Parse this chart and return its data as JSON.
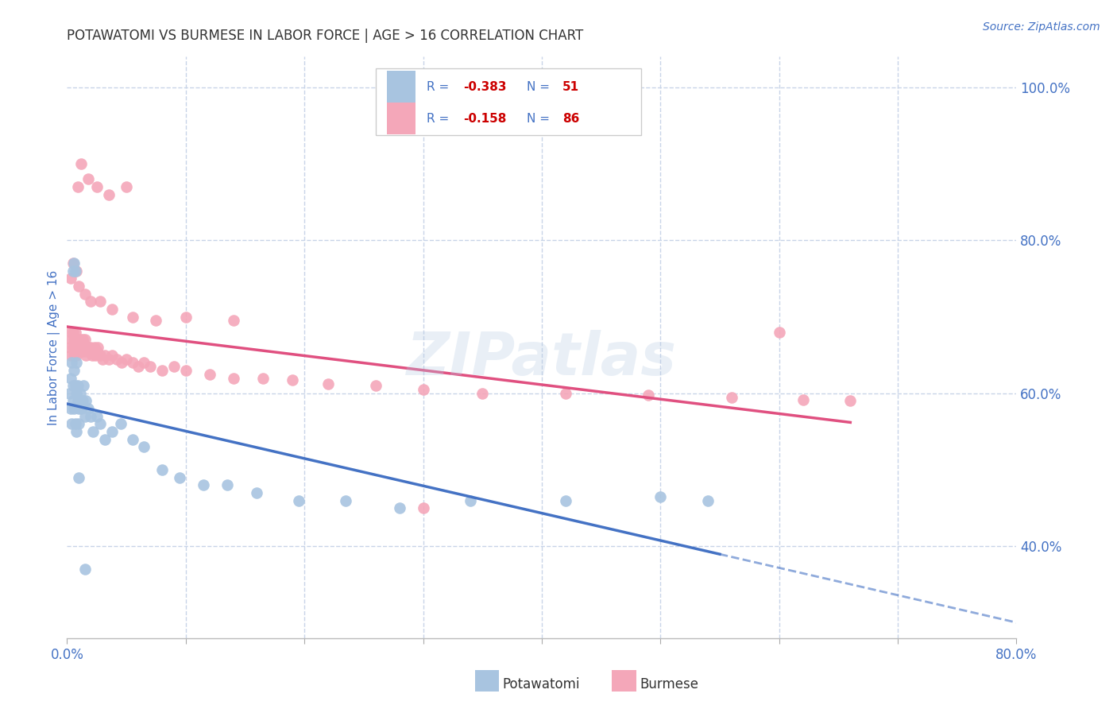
{
  "title": "POTAWATOMI VS BURMESE IN LABOR FORCE | AGE > 16 CORRELATION CHART",
  "source_text": "Source: ZipAtlas.com",
  "ylabel": "In Labor Force | Age > 16",
  "xlim": [
    0.0,
    0.8
  ],
  "ylim": [
    0.28,
    1.04
  ],
  "potawatomi_color": "#a8c4e0",
  "burmese_color": "#f4a7b9",
  "potawatomi_line_color": "#4472c4",
  "burmese_line_color": "#e05080",
  "text_color": "#4472c4",
  "watermark": "ZIPatlas",
  "background_color": "#ffffff",
  "grid_color": "#c8d4e8",
  "legend_r1": "-0.383",
  "legend_n1": "51",
  "legend_r2": "-0.158",
  "legend_n2": "86",
  "potawatomi_x": [
    0.002,
    0.003,
    0.003,
    0.004,
    0.004,
    0.005,
    0.005,
    0.006,
    0.006,
    0.007,
    0.007,
    0.008,
    0.008,
    0.009,
    0.009,
    0.01,
    0.01,
    0.011,
    0.012,
    0.013,
    0.014,
    0.015,
    0.016,
    0.018,
    0.02,
    0.022,
    0.025,
    0.028,
    0.032,
    0.038,
    0.045,
    0.055,
    0.065,
    0.08,
    0.095,
    0.115,
    0.135,
    0.16,
    0.195,
    0.235,
    0.28,
    0.34,
    0.42,
    0.5,
    0.54,
    0.005,
    0.006,
    0.007,
    0.008,
    0.01,
    0.015
  ],
  "potawatomi_y": [
    0.6,
    0.62,
    0.58,
    0.64,
    0.56,
    0.61,
    0.59,
    0.58,
    0.63,
    0.61,
    0.56,
    0.6,
    0.64,
    0.59,
    0.61,
    0.58,
    0.56,
    0.6,
    0.58,
    0.59,
    0.61,
    0.57,
    0.59,
    0.58,
    0.57,
    0.55,
    0.57,
    0.56,
    0.54,
    0.55,
    0.56,
    0.54,
    0.53,
    0.5,
    0.49,
    0.48,
    0.48,
    0.47,
    0.46,
    0.46,
    0.45,
    0.46,
    0.46,
    0.465,
    0.46,
    0.76,
    0.77,
    0.76,
    0.55,
    0.49,
    0.37
  ],
  "burmese_x": [
    0.002,
    0.003,
    0.003,
    0.004,
    0.005,
    0.005,
    0.006,
    0.006,
    0.007,
    0.007,
    0.008,
    0.008,
    0.009,
    0.009,
    0.01,
    0.01,
    0.011,
    0.011,
    0.012,
    0.012,
    0.013,
    0.013,
    0.014,
    0.014,
    0.015,
    0.015,
    0.016,
    0.016,
    0.017,
    0.018,
    0.019,
    0.02,
    0.021,
    0.022,
    0.023,
    0.024,
    0.025,
    0.026,
    0.028,
    0.03,
    0.032,
    0.035,
    0.038,
    0.042,
    0.046,
    0.05,
    0.055,
    0.06,
    0.065,
    0.07,
    0.08,
    0.09,
    0.1,
    0.12,
    0.14,
    0.165,
    0.19,
    0.22,
    0.26,
    0.3,
    0.35,
    0.42,
    0.49,
    0.56,
    0.62,
    0.66,
    0.003,
    0.005,
    0.008,
    0.01,
    0.015,
    0.02,
    0.028,
    0.038,
    0.055,
    0.075,
    0.1,
    0.14,
    0.009,
    0.012,
    0.018,
    0.025,
    0.035,
    0.05,
    0.3,
    0.6
  ],
  "burmese_y": [
    0.66,
    0.68,
    0.65,
    0.67,
    0.66,
    0.68,
    0.65,
    0.67,
    0.66,
    0.68,
    0.65,
    0.665,
    0.66,
    0.67,
    0.655,
    0.665,
    0.66,
    0.67,
    0.655,
    0.665,
    0.66,
    0.67,
    0.655,
    0.665,
    0.66,
    0.67,
    0.65,
    0.66,
    0.655,
    0.66,
    0.655,
    0.66,
    0.65,
    0.655,
    0.66,
    0.65,
    0.655,
    0.66,
    0.65,
    0.645,
    0.65,
    0.645,
    0.65,
    0.645,
    0.64,
    0.645,
    0.64,
    0.635,
    0.64,
    0.635,
    0.63,
    0.635,
    0.63,
    0.625,
    0.62,
    0.62,
    0.618,
    0.612,
    0.61,
    0.605,
    0.6,
    0.6,
    0.598,
    0.595,
    0.592,
    0.59,
    0.75,
    0.77,
    0.76,
    0.74,
    0.73,
    0.72,
    0.72,
    0.71,
    0.7,
    0.695,
    0.7,
    0.695,
    0.87,
    0.9,
    0.88,
    0.87,
    0.86,
    0.87,
    0.45,
    0.68
  ]
}
